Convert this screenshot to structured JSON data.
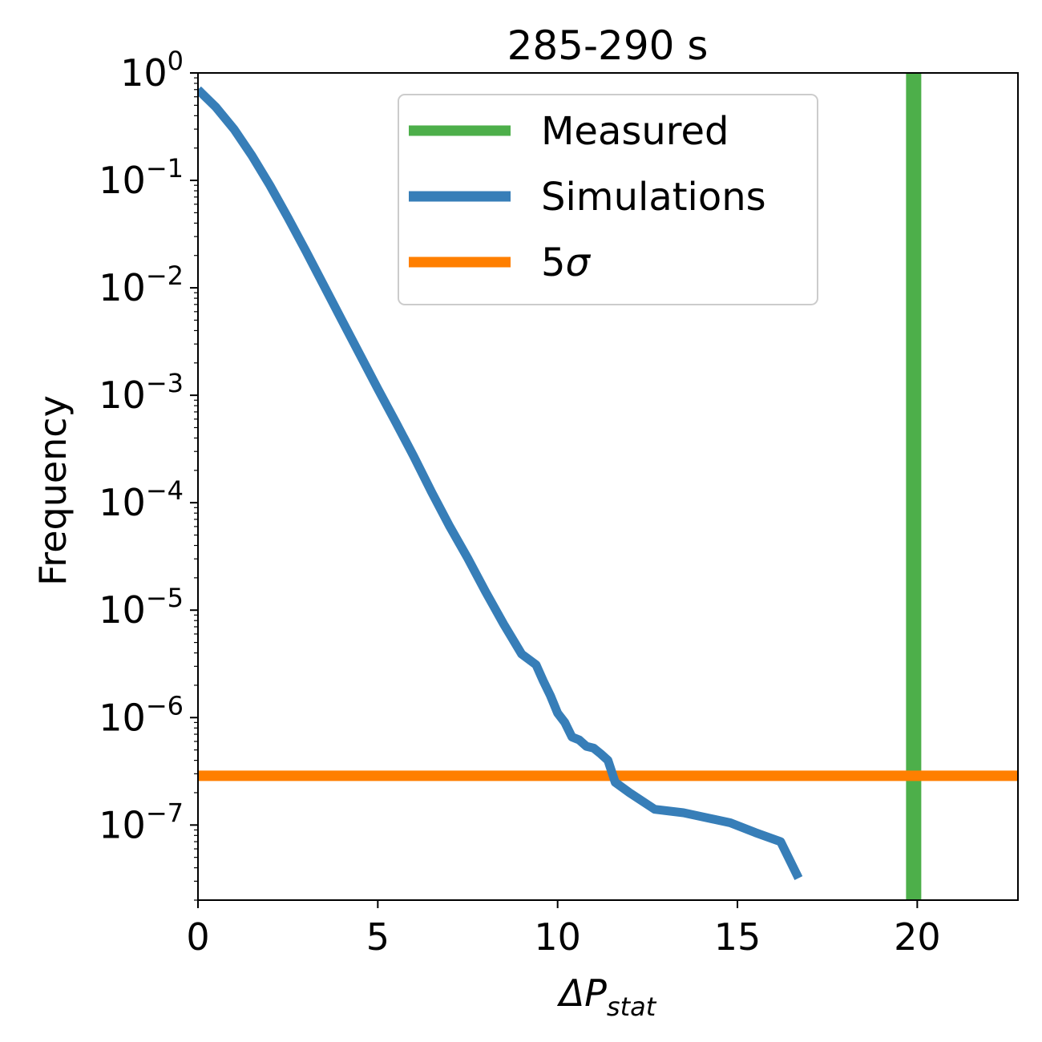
{
  "chart_data": {
    "type": "line",
    "title": "285-290 s",
    "xlabel": {
      "base": "ΔP",
      "subscript": "stat"
    },
    "ylabel": "Frequency",
    "xscale": "linear",
    "yscale": "log",
    "xlim": [
      0,
      22.8
    ],
    "ylim": [
      2e-08,
      1
    ],
    "x_ticks": [
      0,
      5,
      10,
      15,
      20
    ],
    "x_tick_labels": [
      "0",
      "5",
      "10",
      "15",
      "20"
    ],
    "y_ticks": [
      1,
      0.1,
      0.01,
      0.001,
      0.0001,
      1e-05,
      1e-06,
      1e-07
    ],
    "y_tick_labels": [
      {
        "base": "10",
        "exp": "0"
      },
      {
        "base": "10",
        "exp": "−1"
      },
      {
        "base": "10",
        "exp": "−2"
      },
      {
        "base": "10",
        "exp": "−3"
      },
      {
        "base": "10",
        "exp": "−4"
      },
      {
        "base": "10",
        "exp": "−5"
      },
      {
        "base": "10",
        "exp": "−6"
      },
      {
        "base": "10",
        "exp": "−7"
      }
    ],
    "grid": false,
    "legend": {
      "placement": "upper-center",
      "entries": [
        {
          "label": "Measured",
          "color": "#4daf4a"
        },
        {
          "label": "Simulations",
          "color": "#377eb8"
        },
        {
          "label": "5",
          "label_symbol": "σ",
          "color": "#ff7f00"
        }
      ]
    },
    "series": [
      {
        "name": "Simulations",
        "color": "#377eb8",
        "x": [
          0,
          0.5,
          1.0,
          1.5,
          2.0,
          2.5,
          3.0,
          3.5,
          4.0,
          4.5,
          5.0,
          5.5,
          6.0,
          6.5,
          7.0,
          7.5,
          8.0,
          8.5,
          9.0,
          9.4,
          9.6,
          9.8,
          10.0,
          10.2,
          10.4,
          10.6,
          10.8,
          11.0,
          11.2,
          11.4,
          11.6,
          12.0,
          12.7,
          13.5,
          14.8,
          15.5,
          16.2,
          16.7
        ],
        "y": [
          0.7,
          0.48,
          0.3,
          0.17,
          0.09,
          0.045,
          0.022,
          0.0105,
          0.005,
          0.0024,
          0.00115,
          0.00056,
          0.00027,
          0.000125,
          6e-05,
          3.05e-05,
          1.48e-05,
          7.4e-06,
          3.9e-06,
          3.1e-06,
          2.2e-06,
          1.6e-06,
          1.1e-06,
          9e-07,
          6.6e-07,
          6.2e-07,
          5.4e-07,
          5.2e-07,
          4.6e-07,
          4e-07,
          2.5e-07,
          2e-07,
          1.4e-07,
          1.3e-07,
          1.05e-07,
          8.5e-08,
          7e-08,
          3.2e-08
        ]
      }
    ],
    "reference_lines": [
      {
        "name": "Measured",
        "orientation": "vertical",
        "x": 19.9,
        "color": "#4daf4a"
      },
      {
        "name": "5σ",
        "orientation": "horizontal",
        "y": 2.87e-07,
        "color": "#ff7f00"
      }
    ]
  }
}
